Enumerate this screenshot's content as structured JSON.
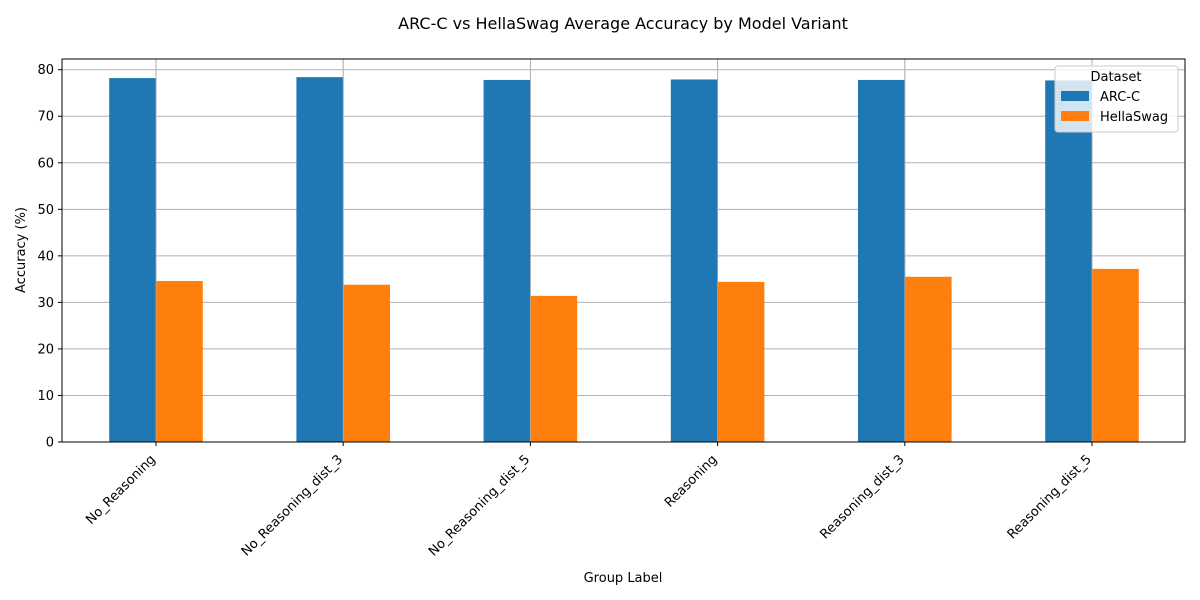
{
  "chart_data": {
    "type": "bar",
    "title": "ARC-C vs HellaSwag Average Accuracy by Model Variant",
    "xlabel": "Group Label",
    "ylabel": "Accuracy (%)",
    "categories": [
      "No_Reasoning",
      "No_Reasoning_dist_3",
      "No_Reasoning_dist_5",
      "Reasoning",
      "Reasoning_dist_3",
      "Reasoning_dist_5"
    ],
    "series": [
      {
        "name": "ARC-C",
        "color": "#1f77b4",
        "values": [
          78.2,
          78.4,
          77.8,
          77.9,
          77.8,
          77.7
        ]
      },
      {
        "name": "HellaSwag",
        "color": "#ff7f0e",
        "values": [
          34.6,
          33.8,
          31.4,
          34.4,
          35.5,
          37.2
        ]
      }
    ],
    "ylim": [
      0,
      82.3
    ],
    "yticks": [
      0,
      10,
      20,
      30,
      40,
      50,
      60,
      70,
      80
    ],
    "grid": true,
    "legend": {
      "title": "Dataset",
      "position": "top-right"
    }
  }
}
